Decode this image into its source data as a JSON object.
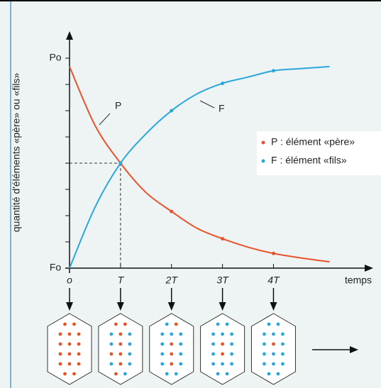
{
  "chart_data": {
    "type": "line",
    "y_label": "quantité d'éléments «père» ou «fils»",
    "x_label": "temps",
    "x": [
      0,
      0.5,
      1,
      1.5,
      2,
      2.5,
      3,
      3.5,
      4,
      4.5,
      5.1
    ],
    "series": [
      {
        "name": "P : élément «père»",
        "short": "P",
        "color": "#e8532b",
        "values": [
          0.96,
          0.68,
          0.5,
          0.36,
          0.27,
          0.19,
          0.14,
          0.1,
          0.07,
          0.05,
          0.03
        ]
      },
      {
        "name": "F : élément «fils»",
        "short": "F",
        "color": "#2aa8dd",
        "values": [
          0,
          0.29,
          0.5,
          0.64,
          0.75,
          0.83,
          0.88,
          0.91,
          0.94,
          0.95,
          0.96
        ]
      }
    ],
    "xlim": [
      0,
      5.9
    ],
    "ylim": [
      0,
      1.115
    ],
    "xticks": [
      {
        "value": 0,
        "label": "o"
      },
      {
        "value": 1,
        "label": "T"
      },
      {
        "value": 2,
        "label": "2T"
      },
      {
        "value": 3,
        "label": "3T"
      },
      {
        "value": 4,
        "label": "4T"
      }
    ],
    "yticks": [
      {
        "value": 0,
        "label": "Fo"
      },
      {
        "value": 1,
        "label": "Po"
      }
    ],
    "minor_yticks": [
      0.125,
      0.25,
      0.375,
      0.5,
      0.625,
      0.75,
      0.875
    ],
    "guide": {
      "x": 1,
      "y": 0.5
    },
    "samples": [
      {
        "red": 16,
        "blue": 0
      },
      {
        "red": 8,
        "blue": 8
      },
      {
        "red": 4,
        "blue": 12
      },
      {
        "red": 2,
        "blue": 14
      },
      {
        "red": 1,
        "blue": 15
      }
    ]
  }
}
